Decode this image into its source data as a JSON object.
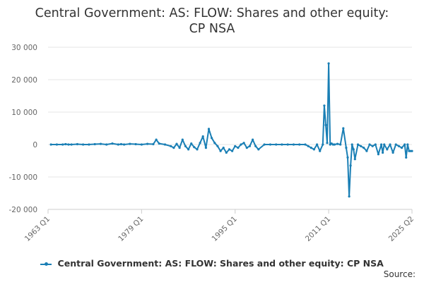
{
  "title_line1": "Central Government: AS: FLOW: Shares and other equity:",
  "title_line2": "CP NSA",
  "legend_label": "Central Government: AS: FLOW: Shares and other equity: CP NSA",
  "source_label": "Source:",
  "colors": {
    "series": "#1a7fb5",
    "grid": "#e6e6e6",
    "axis": "#cccccc"
  },
  "chart_data": {
    "type": "line",
    "title": "Central Government: AS: FLOW: Shares and other equity: CP NSA",
    "ylim": [
      -20000,
      30000
    ],
    "yticks": [
      30000,
      20000,
      10000,
      0,
      -10000,
      -20000
    ],
    "ytick_labels": [
      "30 000",
      "20 000",
      "10 000",
      "0",
      "-10 000",
      "-20 000"
    ],
    "xlim": [
      1963.0,
      2025.25
    ],
    "xticks": [
      1963.0,
      1979.0,
      1995.0,
      2011.0,
      2025.25
    ],
    "xtick_labels": [
      "1963 Q1",
      "1979 Q1",
      "1995 Q1",
      "2011 Q1",
      "2025 Q2"
    ],
    "grid": true,
    "legend": "bottom",
    "series": [
      {
        "name": "Central Government: AS: FLOW: Shares and other equity: CP NSA",
        "x": [
          1963.5,
          1964.5,
          1965.5,
          1966.0,
          1966.5,
          1967.0,
          1968.0,
          1969.0,
          1970.0,
          1971.0,
          1972.0,
          1973.0,
          1974.0,
          1975.0,
          1975.5,
          1976.0,
          1977.0,
          1978.0,
          1979.0,
          1980.0,
          1981.0,
          1981.5,
          1982.0,
          1983.0,
          1984.0,
          1984.5,
          1985.0,
          1985.5,
          1986.0,
          1986.5,
          1987.0,
          1987.5,
          1988.0,
          1988.5,
          1989.0,
          1989.5,
          1990.0,
          1990.5,
          1991.0,
          1991.5,
          1992.0,
          1992.5,
          1993.0,
          1993.5,
          1994.0,
          1994.5,
          1995.0,
          1995.5,
          1996.0,
          1996.5,
          1997.0,
          1997.5,
          1998.0,
          1998.5,
          1999.0,
          2000.0,
          2001.0,
          2002.0,
          2003.0,
          2004.0,
          2005.0,
          2006.0,
          2007.0,
          2007.5,
          2008.0,
          2008.5,
          2009.0,
          2009.5,
          2010.0,
          2010.25,
          2010.5,
          2010.75,
          2011.0,
          2011.25,
          2011.5,
          2011.75,
          2012.0,
          2012.5,
          2013.0,
          2013.5,
          2014.0,
          2014.25,
          2014.5,
          2014.75,
          2015.0,
          2015.25,
          2015.5,
          2016.0,
          2016.5,
          2017.0,
          2017.5,
          2018.0,
          2018.5,
          2019.0,
          2019.5,
          2020.0,
          2020.25,
          2020.5,
          2021.0,
          2021.5,
          2022.0,
          2022.5,
          2023.0,
          2023.5,
          2024.0,
          2024.25,
          2024.5,
          2024.75,
          2025.0,
          2025.25
        ],
        "values": [
          0,
          0,
          0,
          100,
          0,
          0,
          100,
          0,
          0,
          100,
          200,
          0,
          300,
          0,
          100,
          0,
          200,
          100,
          0,
          200,
          100,
          1500,
          300,
          0,
          -500,
          -1000,
          200,
          -1000,
          1500,
          -500,
          -1500,
          300,
          -800,
          -1500,
          500,
          2500,
          -1000,
          4800,
          2000,
          500,
          -500,
          -2000,
          -1000,
          -2500,
          -1500,
          -2000,
          -500,
          -1000,
          0,
          500,
          -1000,
          -500,
          1500,
          -500,
          -1500,
          0,
          0,
          0,
          0,
          0,
          0,
          0,
          0,
          -500,
          -1000,
          -1500,
          0,
          -2000,
          0,
          12000,
          6000,
          500,
          25000,
          0,
          300,
          0,
          0,
          200,
          0,
          5000,
          -1000,
          -4000,
          -16000,
          -6500,
          0,
          -1500,
          -4500,
          0,
          -500,
          -1000,
          -2000,
          0,
          -500,
          0,
          -3000,
          0,
          -2500,
          0,
          -1500,
          0,
          -2500,
          0,
          -500,
          -1000,
          0,
          -4000,
          0,
          -2000,
          -2000,
          -2000
        ]
      }
    ]
  }
}
